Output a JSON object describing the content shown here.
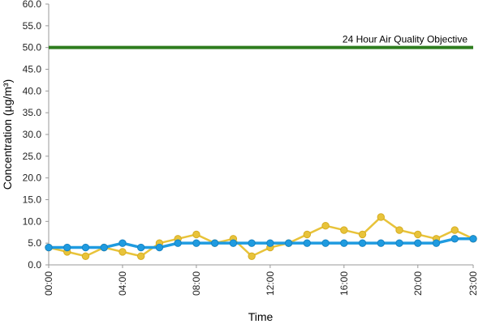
{
  "chart_data": {
    "type": "line",
    "xlabel": "Time",
    "ylabel": "Concentration (µg/m³)",
    "ylim": [
      0,
      60
    ],
    "y_ticks": [
      "0.0",
      "5.0",
      "10.0",
      "15.0",
      "20.0",
      "25.0",
      "30.0",
      "35.0",
      "40.0",
      "45.0",
      "50.0",
      "55.0",
      "60.0"
    ],
    "x": [
      "00:00",
      "01:00",
      "02:00",
      "03:00",
      "04:00",
      "05:00",
      "06:00",
      "07:00",
      "08:00",
      "09:00",
      "10:00",
      "11:00",
      "12:00",
      "13:00",
      "14:00",
      "15:00",
      "16:00",
      "17:00",
      "18:00",
      "19:00",
      "20:00",
      "21:00",
      "22:00",
      "23:00"
    ],
    "x_tick_labels": [
      "00:00",
      "04:00",
      "08:00",
      "12:00",
      "16:00",
      "20:00",
      "23:00"
    ],
    "series": [
      {
        "color": "#e8c33a",
        "values": [
          4,
          3,
          2,
          4,
          3,
          2,
          5,
          6,
          7,
          5,
          6,
          2,
          4,
          5,
          7,
          9,
          8,
          7,
          11,
          8,
          7,
          6,
          8,
          6
        ]
      },
      {
        "color": "#1f9be0",
        "values": [
          4,
          4,
          4,
          4,
          5,
          4,
          4,
          5,
          5,
          5,
          5,
          5,
          5,
          5,
          5,
          5,
          5,
          5,
          5,
          5,
          5,
          5,
          6,
          6
        ]
      }
    ],
    "objective": {
      "value": 50,
      "label": "24 Hour Air Quality Objective",
      "color": "#2e7d1e"
    },
    "grid": false
  }
}
